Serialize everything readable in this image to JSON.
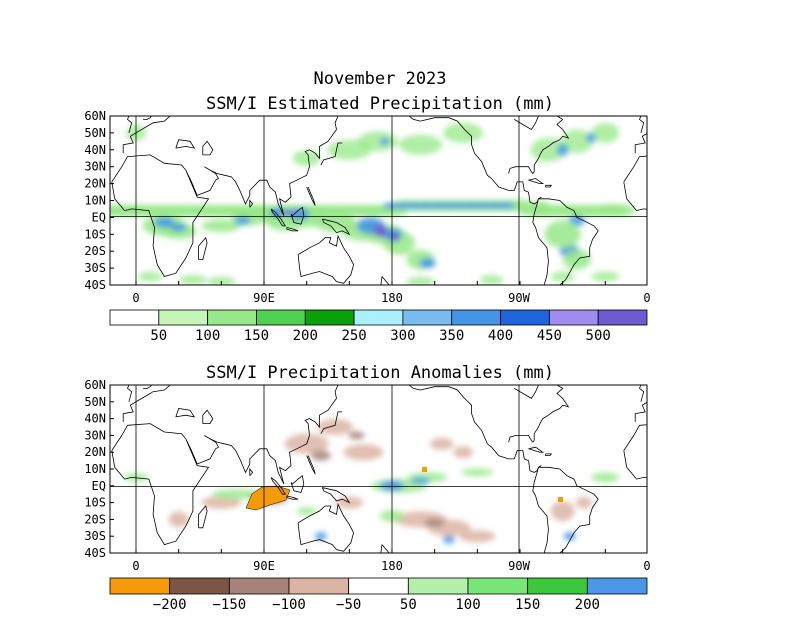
{
  "header": {
    "month": "November 2023",
    "title_top": "SSM/I Estimated Precipitation (mm)",
    "title_bottom": "SSM/I Precipitation Anomalies (mm)"
  },
  "axes": {
    "lat_labels": [
      "60N",
      "50N",
      "40N",
      "30N",
      "20N",
      "10N",
      "EQ",
      "10S",
      "20S",
      "30S",
      "40S"
    ],
    "lon_labels": [
      "0",
      "90E",
      "180",
      "90W",
      "0"
    ]
  },
  "colorbar_top": {
    "colors": [
      "#ffffff",
      "#c8f5b8",
      "#96e888",
      "#50d050",
      "#0aa00a",
      "#aaf0ff",
      "#78bcf0",
      "#4694e6",
      "#1e64dc",
      "#a08cf0",
      "#6e5ad2"
    ],
    "labels": [
      "50",
      "100",
      "150",
      "200",
      "250",
      "300",
      "350",
      "400",
      "450",
      "500"
    ]
  },
  "colorbar_bottom": {
    "colors": [
      "#f59b0a",
      "#7d5546",
      "#a5827a",
      "#dcb4a5",
      "#ffffff",
      "#b4f0aa",
      "#78e678",
      "#3cc83c",
      "#4b96e6"
    ],
    "labels": [
      "−200",
      "−150",
      "−100",
      "−50",
      "50",
      "100",
      "150",
      "200"
    ]
  },
  "legend_colors": {
    "wet_low": "#96e888",
    "wet_mid": "#4694e6",
    "wet_high": "#6e5ad2",
    "dry_light": "#dcb4a5",
    "dry_mid": "#a5827a",
    "dry_strong": "#f59b0a",
    "wet_anom": "#4b96e6"
  }
}
